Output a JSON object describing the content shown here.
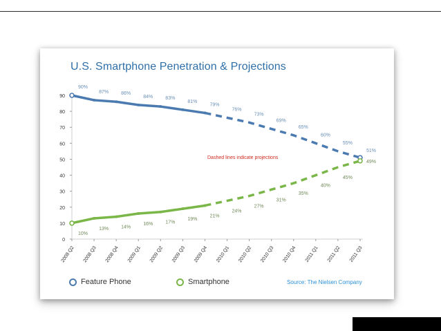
{
  "chart_data": {
    "type": "line",
    "title": "U.S. Smartphone Penetration & Projections",
    "categories": [
      "2008 Q2",
      "2008 Q3",
      "2008 Q4",
      "2009 Q1",
      "2009 Q2",
      "2009 Q3",
      "2009 Q4",
      "2010 Q1",
      "2010 Q2",
      "2010 Q3",
      "2010 Q4",
      "2011 Q1",
      "2011 Q2",
      "2011 Q3"
    ],
    "yticks": [
      0,
      10,
      20,
      30,
      40,
      50,
      60,
      70,
      80,
      90
    ],
    "ylim": [
      0,
      90
    ],
    "projection_start_index": 6,
    "series": [
      {
        "name": "Feature Phone",
        "color": "#4a7ab0",
        "values": [
          90,
          87,
          86,
          84,
          83,
          81,
          79,
          76,
          73,
          69,
          65,
          60,
          55,
          51
        ],
        "labels": [
          "90%",
          "87%",
          "86%",
          "84%",
          "83%",
          "81%",
          "79%",
          "76%",
          "73%",
          "69%",
          "65%",
          "60%",
          "55%",
          "51%"
        ]
      },
      {
        "name": "Smartphone",
        "color": "#7ab648",
        "values": [
          10,
          13,
          14,
          16,
          17,
          19,
          21,
          24,
          27,
          31,
          35,
          40,
          45,
          49
        ],
        "labels": [
          "10%",
          "13%",
          "14%",
          "16%",
          "17%",
          "19%",
          "21%",
          "24%",
          "27%",
          "31%",
          "35%",
          "40%",
          "45%",
          "49%"
        ]
      }
    ],
    "annotation": "Dashed lines indicate projections",
    "source": "Source: The Nielsen Company",
    "legend_position": "bottom"
  }
}
